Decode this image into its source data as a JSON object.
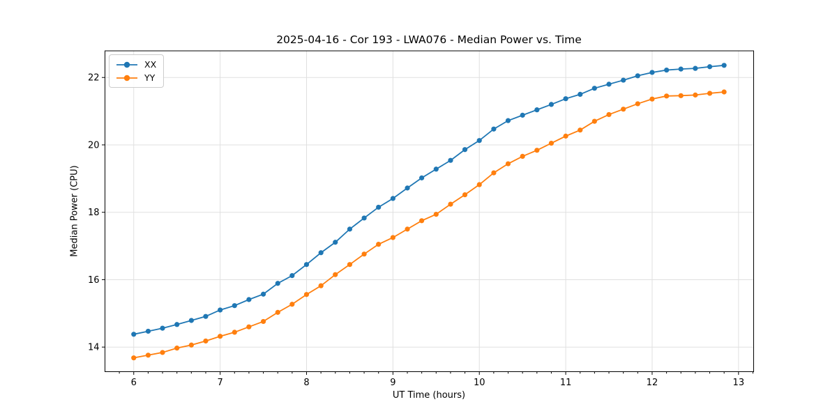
{
  "figure": {
    "title": "2025-04-16 - Cor 193 - LWA076 - Median Power vs. Time"
  },
  "chart_data": {
    "type": "line",
    "title": "2025-04-16 - Cor 193 - LWA076 - Median Power vs. Time",
    "xlabel": "UT Time (hours)",
    "ylabel": "Median Power (CPU)",
    "x": [
      6,
      6.167,
      6.333,
      6.5,
      6.667,
      6.833,
      7,
      7.167,
      7.333,
      7.5,
      7.667,
      7.833,
      8,
      8.167,
      8.333,
      8.5,
      8.667,
      8.833,
      9,
      9.167,
      9.333,
      9.5,
      9.667,
      9.833,
      10,
      10.167,
      10.333,
      10.5,
      10.667,
      10.833,
      11,
      11.167,
      11.333,
      11.5,
      11.667,
      11.833,
      12,
      12.167,
      12.333,
      12.5,
      12.667,
      12.833
    ],
    "series": [
      {
        "name": "XX",
        "color": "#1f77b4",
        "values": [
          14.38,
          14.47,
          14.56,
          14.67,
          14.79,
          14.91,
          15.1,
          15.23,
          15.41,
          15.57,
          15.89,
          16.12,
          16.45,
          16.8,
          17.11,
          17.5,
          17.83,
          18.15,
          18.41,
          18.72,
          19.02,
          19.28,
          19.54,
          19.86,
          20.13,
          20.47,
          20.72,
          20.88,
          21.04,
          21.2,
          21.37,
          21.5,
          21.68,
          21.8,
          21.92,
          22.05,
          22.15,
          22.22,
          22.25,
          22.27,
          22.32,
          22.36
        ]
      },
      {
        "name": "YY",
        "color": "#ff7f0e",
        "values": [
          13.68,
          13.76,
          13.84,
          13.97,
          14.06,
          14.18,
          14.32,
          14.44,
          14.6,
          14.76,
          15.03,
          15.27,
          15.56,
          15.82,
          16.15,
          16.45,
          16.76,
          17.05,
          17.25,
          17.5,
          17.75,
          17.94,
          18.24,
          18.52,
          18.82,
          19.17,
          19.44,
          19.66,
          19.84,
          20.05,
          20.26,
          20.44,
          20.7,
          20.9,
          21.06,
          21.22,
          21.36,
          21.45,
          21.46,
          21.48,
          21.53,
          21.57
        ]
      }
    ],
    "xlim": [
      5.667,
      13.175
    ],
    "ylim": [
      13.27,
      22.79
    ],
    "x_ticks": [
      6,
      7,
      8,
      9,
      10,
      11,
      12,
      13
    ],
    "y_ticks": [
      14,
      16,
      18,
      20,
      22
    ],
    "x_minor_step": 0.1666667,
    "grid": true,
    "legend_position": "upper left",
    "marker": "o"
  },
  "colors": {
    "grid": "#e0e0e0",
    "spine": "#000000",
    "tick_text": "#000000",
    "series_xx": "#1f77b4",
    "series_yy": "#ff7f0e",
    "legend_border": "#cccccc"
  }
}
